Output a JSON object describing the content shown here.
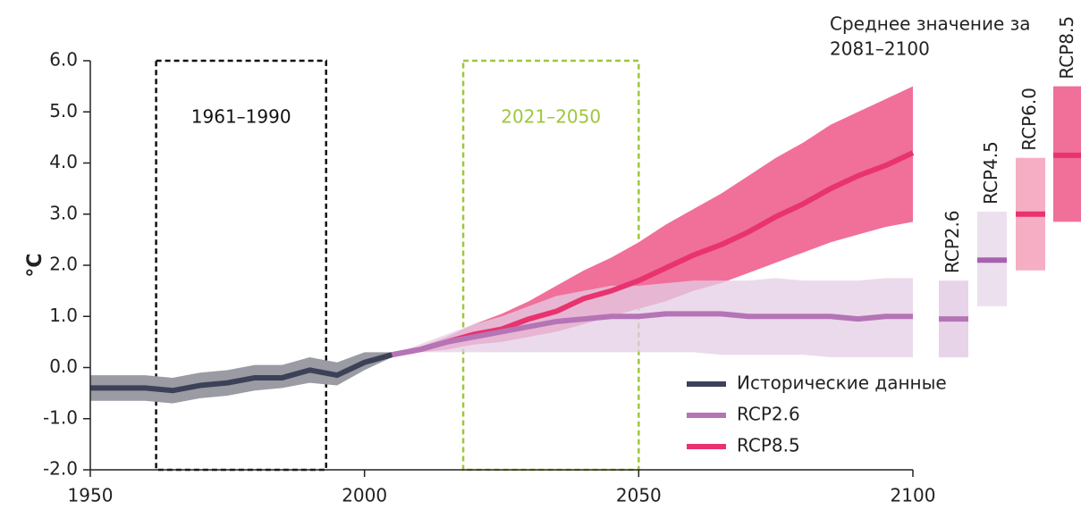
{
  "chart_data": {
    "type": "line",
    "ylabel": "°C",
    "ylim": [
      -2,
      6
    ],
    "yticks": [
      {
        "value": -2,
        "label": "-2.0"
      },
      {
        "value": -1,
        "label": "-1.0"
      },
      {
        "value": 0,
        "label": "0.0"
      },
      {
        "value": 1,
        "label": "1.0"
      },
      {
        "value": 2,
        "label": "2.0"
      },
      {
        "value": 3,
        "label": "3.0"
      },
      {
        "value": 4,
        "label": "4.0"
      },
      {
        "value": 5,
        "label": "5.0"
      },
      {
        "value": 6,
        "label": "6.0"
      }
    ],
    "xlim": [
      1950,
      2100
    ],
    "xticks": [
      1950,
      2000,
      2050,
      2100
    ],
    "spans": [
      {
        "label": "1961–1990",
        "x0": 1962,
        "x1": 1993,
        "color": "#111111"
      },
      {
        "label": "2021–2050",
        "x0": 2018,
        "x1": 2050,
        "color": "#9ec63c"
      }
    ],
    "series": [
      {
        "name": "Исторические данные",
        "color": "#3b4258",
        "band_color": "#9a9ba3",
        "x": [
          1950,
          1955,
          1960,
          1965,
          1970,
          1975,
          1980,
          1985,
          1990,
          1995,
          2000,
          2005
        ],
        "values": [
          -0.4,
          -0.4,
          -0.4,
          -0.45,
          -0.35,
          -0.3,
          -0.2,
          -0.2,
          -0.05,
          -0.15,
          0.1,
          0.25
        ],
        "lower": [
          -0.65,
          -0.65,
          -0.65,
          -0.7,
          -0.6,
          -0.55,
          -0.45,
          -0.4,
          -0.3,
          -0.35,
          -0.05,
          0.2
        ],
        "upper": [
          -0.15,
          -0.15,
          -0.15,
          -0.2,
          -0.1,
          -0.05,
          0.05,
          0.05,
          0.2,
          0.1,
          0.3,
          0.3
        ]
      },
      {
        "name": "RCP2.6",
        "color": "#b574b6",
        "band_color": "#e4cde5",
        "x": [
          2005,
          2010,
          2015,
          2020,
          2025,
          2030,
          2035,
          2040,
          2045,
          2050,
          2055,
          2060,
          2065,
          2070,
          2075,
          2080,
          2085,
          2090,
          2095,
          2100
        ],
        "values": [
          0.25,
          0.35,
          0.5,
          0.6,
          0.7,
          0.8,
          0.9,
          0.95,
          1.0,
          1.0,
          1.05,
          1.05,
          1.05,
          1.0,
          1.0,
          1.0,
          1.0,
          0.95,
          1.0,
          1.0
        ],
        "lower": [
          0.25,
          0.3,
          0.3,
          0.3,
          0.3,
          0.3,
          0.3,
          0.3,
          0.3,
          0.3,
          0.3,
          0.3,
          0.25,
          0.25,
          0.25,
          0.25,
          0.2,
          0.2,
          0.2,
          0.2
        ],
        "upper": [
          0.25,
          0.45,
          0.65,
          0.85,
          1.0,
          1.2,
          1.4,
          1.5,
          1.6,
          1.6,
          1.65,
          1.7,
          1.7,
          1.7,
          1.75,
          1.7,
          1.7,
          1.7,
          1.75,
          1.75
        ]
      },
      {
        "name": "RCP8.5",
        "color": "#e8336f",
        "band_color": "#f0709a",
        "x": [
          2005,
          2010,
          2015,
          2020,
          2025,
          2030,
          2035,
          2040,
          2045,
          2050,
          2055,
          2060,
          2065,
          2070,
          2075,
          2080,
          2085,
          2090,
          2095,
          2100
        ],
        "values": [
          0.25,
          0.35,
          0.5,
          0.65,
          0.75,
          0.95,
          1.1,
          1.35,
          1.5,
          1.7,
          1.95,
          2.2,
          2.4,
          2.65,
          2.95,
          3.2,
          3.5,
          3.75,
          3.95,
          4.2
        ],
        "lower": [
          0.25,
          0.3,
          0.35,
          0.45,
          0.5,
          0.6,
          0.7,
          0.85,
          1.0,
          1.15,
          1.3,
          1.5,
          1.65,
          1.85,
          2.05,
          2.25,
          2.45,
          2.6,
          2.75,
          2.85
        ],
        "upper": [
          0.25,
          0.4,
          0.6,
          0.85,
          1.05,
          1.3,
          1.6,
          1.9,
          2.15,
          2.45,
          2.8,
          3.1,
          3.4,
          3.75,
          4.1,
          4.4,
          4.75,
          5.0,
          5.25,
          5.5
        ]
      }
    ],
    "means_title": [
      "Среднее значение за",
      "2081–2100"
    ],
    "means": [
      {
        "name": "RCP2.6",
        "value": 0.95,
        "low": 0.2,
        "high": 1.7,
        "color": "#e8d4e8",
        "line_color": "#b574b6"
      },
      {
        "name": "RCP4.5",
        "value": 2.1,
        "low": 1.2,
        "high": 3.05,
        "color": "#ece0ee",
        "line_color": "#a861b0"
      },
      {
        "name": "RCP6.0",
        "value": 3.0,
        "low": 1.9,
        "high": 4.1,
        "color": "#f5aec3",
        "line_color": "#e8336f"
      },
      {
        "name": "RCP8.5",
        "value": 4.15,
        "low": 2.85,
        "high": 5.5,
        "color": "#f0709a",
        "line_color": "#e8336f"
      }
    ]
  }
}
